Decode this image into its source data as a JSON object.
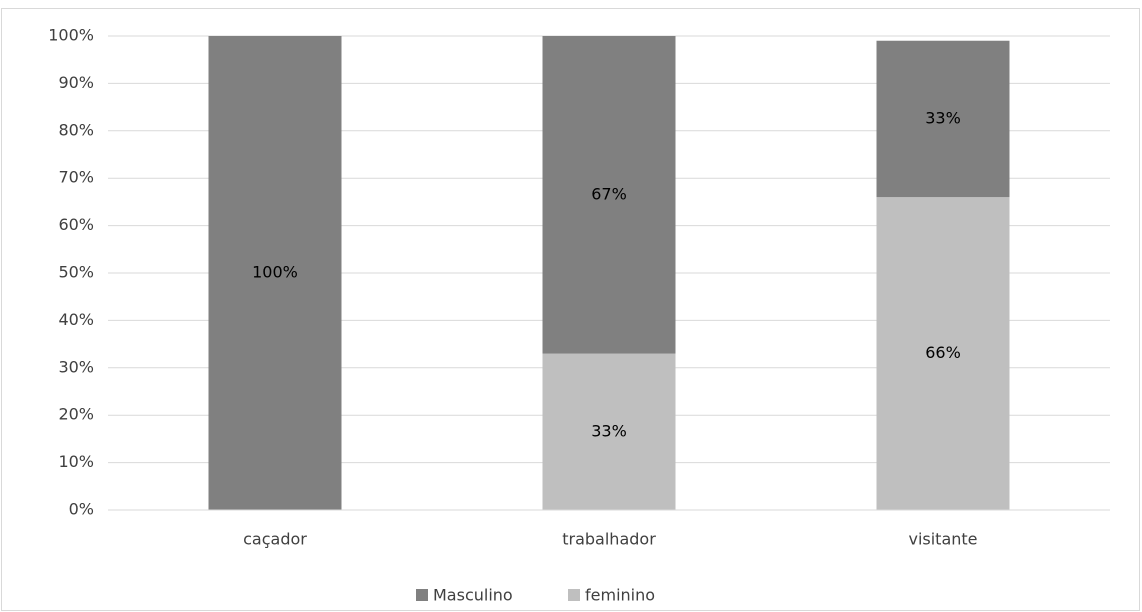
{
  "chart_data": {
    "type": "stacked_bar",
    "categories": [
      "caçador",
      "trabalhador",
      "visitante"
    ],
    "series": [
      {
        "name": "Masculino",
        "color": "#808080",
        "values": [
          100,
          67,
          33
        ],
        "value_labels": [
          "100%",
          "67%",
          "33%"
        ]
      },
      {
        "name": "feminino",
        "color": "#bfbfbf",
        "values": [
          0,
          33,
          66
        ],
        "value_labels": [
          null,
          "33%",
          "66%"
        ]
      }
    ],
    "stack_order": "bottom_up_reverse",
    "ylim": [
      0,
      100
    ],
    "yticks": [
      {
        "value": 0,
        "label": "0%"
      },
      {
        "value": 10,
        "label": "10%"
      },
      {
        "value": 20,
        "label": "20%"
      },
      {
        "value": 30,
        "label": "30%"
      },
      {
        "value": 40,
        "label": "40%"
      },
      {
        "value": 50,
        "label": "50%"
      },
      {
        "value": 60,
        "label": "60%"
      },
      {
        "value": 70,
        "label": "70%"
      },
      {
        "value": 80,
        "label": "80%"
      },
      {
        "value": 90,
        "label": "90%"
      },
      {
        "value": 100,
        "label": "100%"
      }
    ],
    "grid": true,
    "legend": "bottom"
  }
}
